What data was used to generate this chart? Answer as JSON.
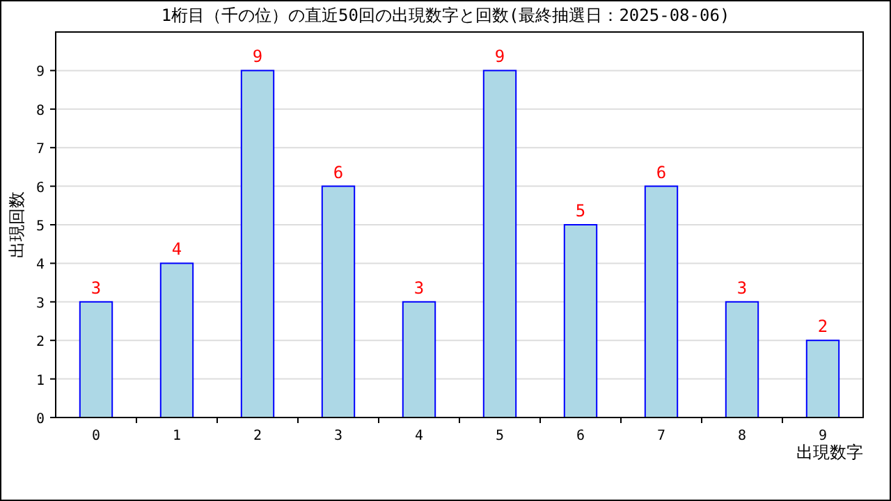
{
  "chart_data": {
    "type": "bar",
    "title": "1桁目（千の位）の直近50回の出現数字と回数(最終抽選日：2025-08-06)",
    "xlabel": "出現数字",
    "ylabel": "出現回数",
    "categories": [
      "0",
      "1",
      "2",
      "3",
      "4",
      "5",
      "6",
      "7",
      "8",
      "9"
    ],
    "values": [
      3,
      4,
      9,
      6,
      3,
      9,
      5,
      6,
      3,
      2
    ],
    "color": "#add8e6",
    "ylim": [
      0,
      10
    ],
    "yticks": [
      0,
      1,
      2,
      3,
      4,
      5,
      6,
      7,
      8,
      9
    ],
    "grid": "y",
    "data_labels": true
  }
}
